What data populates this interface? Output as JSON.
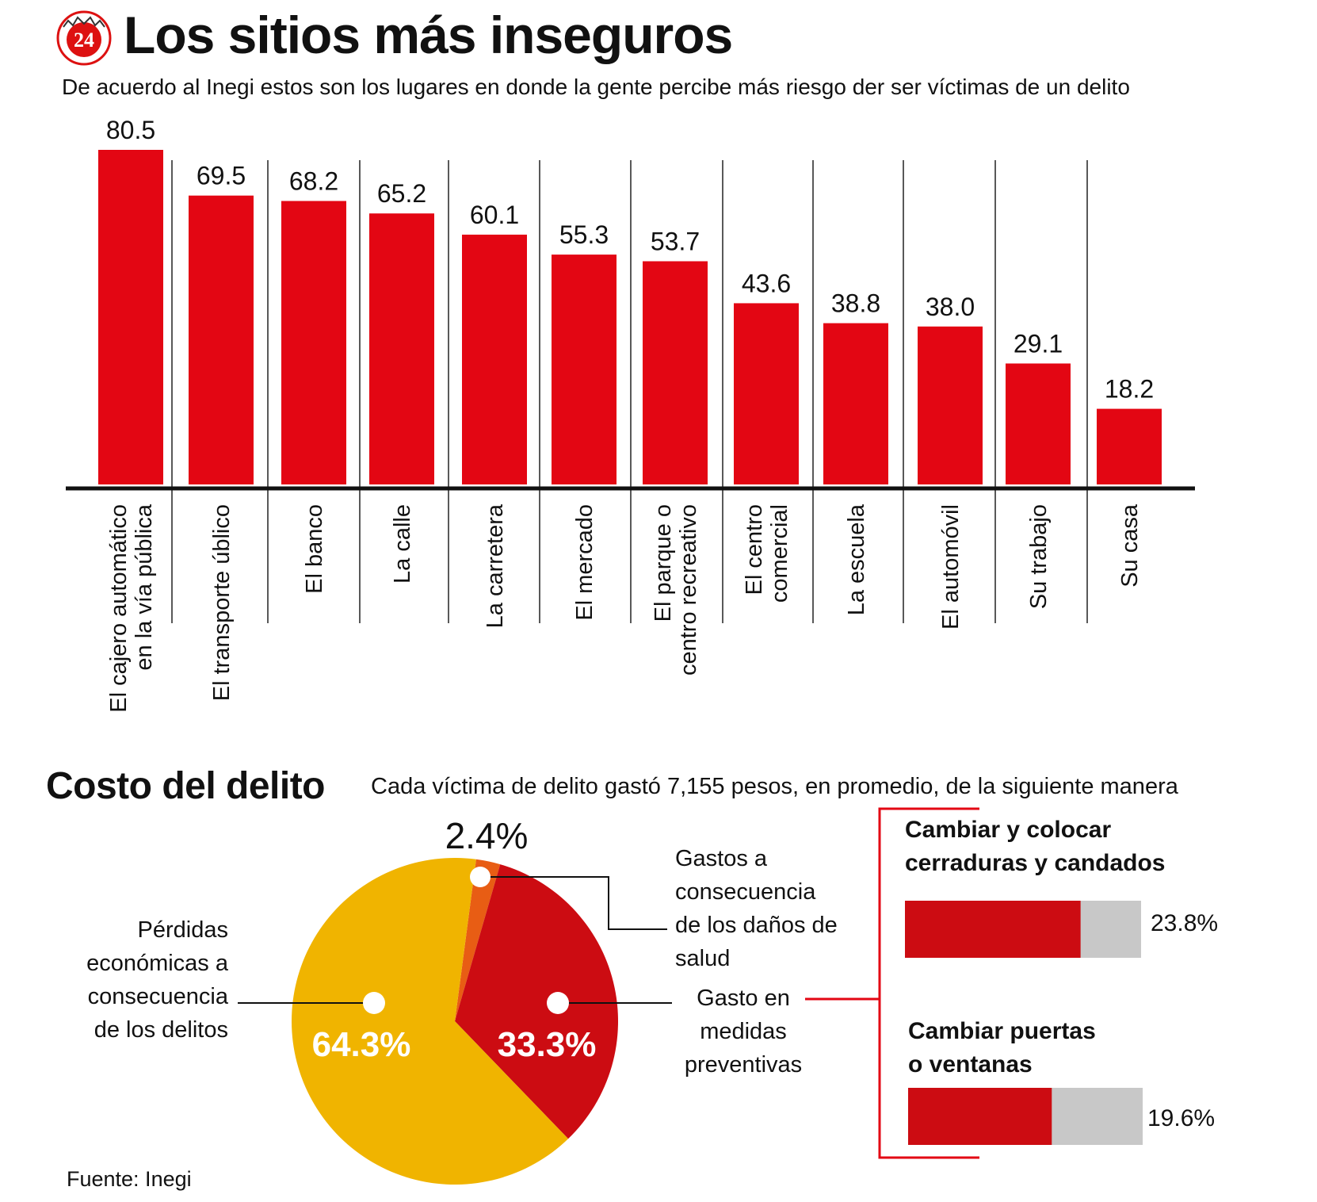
{
  "header": {
    "title": "Los sitios más inseguros",
    "subtitle": "De acuerdo al Inegi estos son los lugares en donde la gente percibe más riesgo der ser víctimas de un delito",
    "logo_text": "24"
  },
  "section2": {
    "title": "Costo del delito",
    "subtitle": "Cada víctima de delito gastó 7,155 pesos, en promedio, de la siguiente manera"
  },
  "footer": {
    "source": "Fuente: Inegi"
  },
  "colors": {
    "bar": "#e30613",
    "pie_yellow": "#f0b400",
    "pie_red": "#cc0c12",
    "pie_orange": "#e85d14",
    "bar_bg": "#c8c8c8"
  },
  "chart_data": [
    {
      "type": "bar",
      "title": "Los sitios más inseguros",
      "categories": [
        [
          "El cajero automático",
          "en la vía pública"
        ],
        [
          "El  transporte úblico"
        ],
        [
          "El  banco"
        ],
        [
          "La calle"
        ],
        [
          "La carretera"
        ],
        [
          "El mercado"
        ],
        [
          "El parque o",
          "centro recreativo"
        ],
        [
          "El centro",
          "comercial"
        ],
        [
          "La escuela"
        ],
        [
          "El automóvil"
        ],
        [
          "Su trabajo"
        ],
        [
          "Su casa"
        ]
      ],
      "values": [
        80.5,
        69.5,
        68.2,
        65.2,
        60.1,
        55.3,
        53.7,
        43.6,
        38.8,
        38.0,
        29.1,
        18.2
      ],
      "value_labels": [
        "80.5",
        "69.5",
        "68.2",
        "65.2",
        "60.1",
        "55.3",
        "53.7",
        "43.6",
        "38.8",
        "38.0",
        "29.1",
        "18.2"
      ],
      "ylim": [
        0,
        80.5
      ],
      "grid": false
    },
    {
      "type": "pie",
      "title": "Costo del delito",
      "slices": [
        {
          "name": [
            "Pérdidas",
            "económicas a",
            "consecuencia",
            "de los delitos"
          ],
          "value": 64.3,
          "label": "64.3%"
        },
        {
          "name": [
            "Gastos a",
            "consecuencia",
            "de los daños de",
            "salud"
          ],
          "value": 2.4,
          "label": "2.4%"
        },
        {
          "name": [
            "Gasto en",
            "medidas",
            "preventivas"
          ],
          "value": 33.3,
          "label": "33.3%"
        }
      ]
    },
    {
      "type": "bar",
      "orientation": "horizontal",
      "items": [
        {
          "name": [
            "Cambiar y colocar",
            "cerraduras y candados"
          ],
          "value": 23.8,
          "label": "23.8%"
        },
        {
          "name": [
            "Cambiar puertas",
            "o ventanas"
          ],
          "value": 19.6,
          "label": "19.6%"
        }
      ],
      "xlim": [
        0,
        32
      ]
    }
  ]
}
